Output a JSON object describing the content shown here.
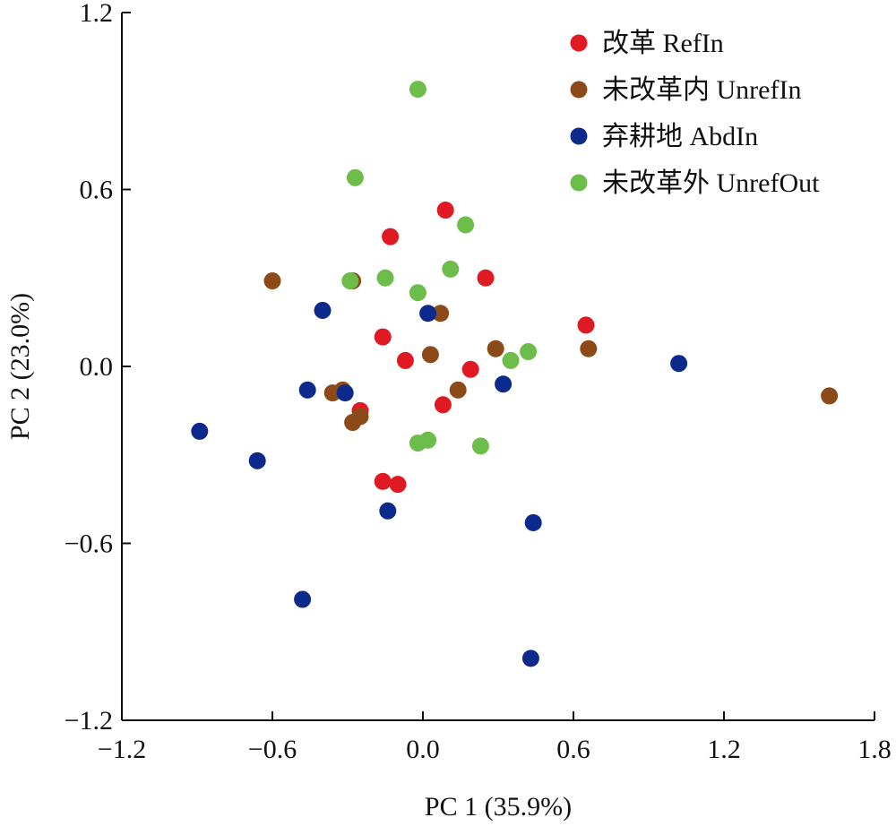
{
  "chart_data": {
    "type": "scatter",
    "xlabel": "PC 1 (35.9%)",
    "ylabel": "PC 2 (23.0%)",
    "xlim": [
      -1.2,
      1.8
    ],
    "ylim": [
      -1.2,
      1.2
    ],
    "x_ticks": [
      -1.2,
      -0.6,
      0.0,
      0.6,
      1.2,
      1.8
    ],
    "y_ticks": [
      -1.2,
      -0.6,
      0.0,
      0.6,
      1.2
    ],
    "x_tick_labels": [
      "−1.2",
      "−0.6",
      "0.0",
      "0.6",
      "1.2",
      "1.8"
    ],
    "y_tick_labels": [
      "−1.2",
      "−0.6",
      "0.0",
      "0.6",
      "1.2"
    ],
    "grid": false,
    "legend_position": "top-right",
    "series": [
      {
        "name": "改革 RefIn",
        "color": "#e01a22",
        "points": [
          [
            0.09,
            0.53
          ],
          [
            -0.13,
            0.44
          ],
          [
            0.25,
            0.3
          ],
          [
            -0.16,
            0.1
          ],
          [
            -0.07,
            0.02
          ],
          [
            0.19,
            -0.01
          ],
          [
            0.08,
            -0.13
          ],
          [
            -0.25,
            -0.15
          ],
          [
            -0.16,
            -0.39
          ],
          [
            -0.1,
            -0.4
          ],
          [
            0.65,
            0.14
          ]
        ]
      },
      {
        "name": "未改革内 UnrefIn",
        "color": "#8b4a17",
        "points": [
          [
            -0.6,
            0.29
          ],
          [
            -0.28,
            0.29
          ],
          [
            0.07,
            0.18
          ],
          [
            0.03,
            0.04
          ],
          [
            0.29,
            0.06
          ],
          [
            0.66,
            0.06
          ],
          [
            0.14,
            -0.08
          ],
          [
            -0.32,
            -0.08
          ],
          [
            -0.36,
            -0.09
          ],
          [
            -0.25,
            -0.17
          ],
          [
            -0.28,
            -0.19
          ],
          [
            1.62,
            -0.1
          ]
        ]
      },
      {
        "name": "弃耕地 AbdIn",
        "color": "#0b2a8c",
        "points": [
          [
            -0.4,
            0.19
          ],
          [
            0.02,
            0.18
          ],
          [
            1.02,
            0.01
          ],
          [
            -0.46,
            -0.08
          ],
          [
            -0.31,
            -0.09
          ],
          [
            0.32,
            -0.06
          ],
          [
            -0.89,
            -0.22
          ],
          [
            -0.66,
            -0.32
          ],
          [
            -0.14,
            -0.49
          ],
          [
            0.44,
            -0.53
          ],
          [
            -0.48,
            -0.79
          ],
          [
            0.43,
            -0.99
          ]
        ]
      },
      {
        "name": "未改革外 UnrefOut",
        "color": "#6cbd4a",
        "points": [
          [
            -0.02,
            0.94
          ],
          [
            -0.27,
            0.64
          ],
          [
            0.17,
            0.48
          ],
          [
            0.11,
            0.33
          ],
          [
            -0.15,
            0.3
          ],
          [
            -0.29,
            0.29
          ],
          [
            -0.02,
            0.25
          ],
          [
            0.42,
            0.05
          ],
          [
            0.35,
            0.02
          ],
          [
            -0.02,
            -0.26
          ],
          [
            0.02,
            -0.25
          ],
          [
            0.23,
            -0.27
          ]
        ]
      }
    ]
  }
}
